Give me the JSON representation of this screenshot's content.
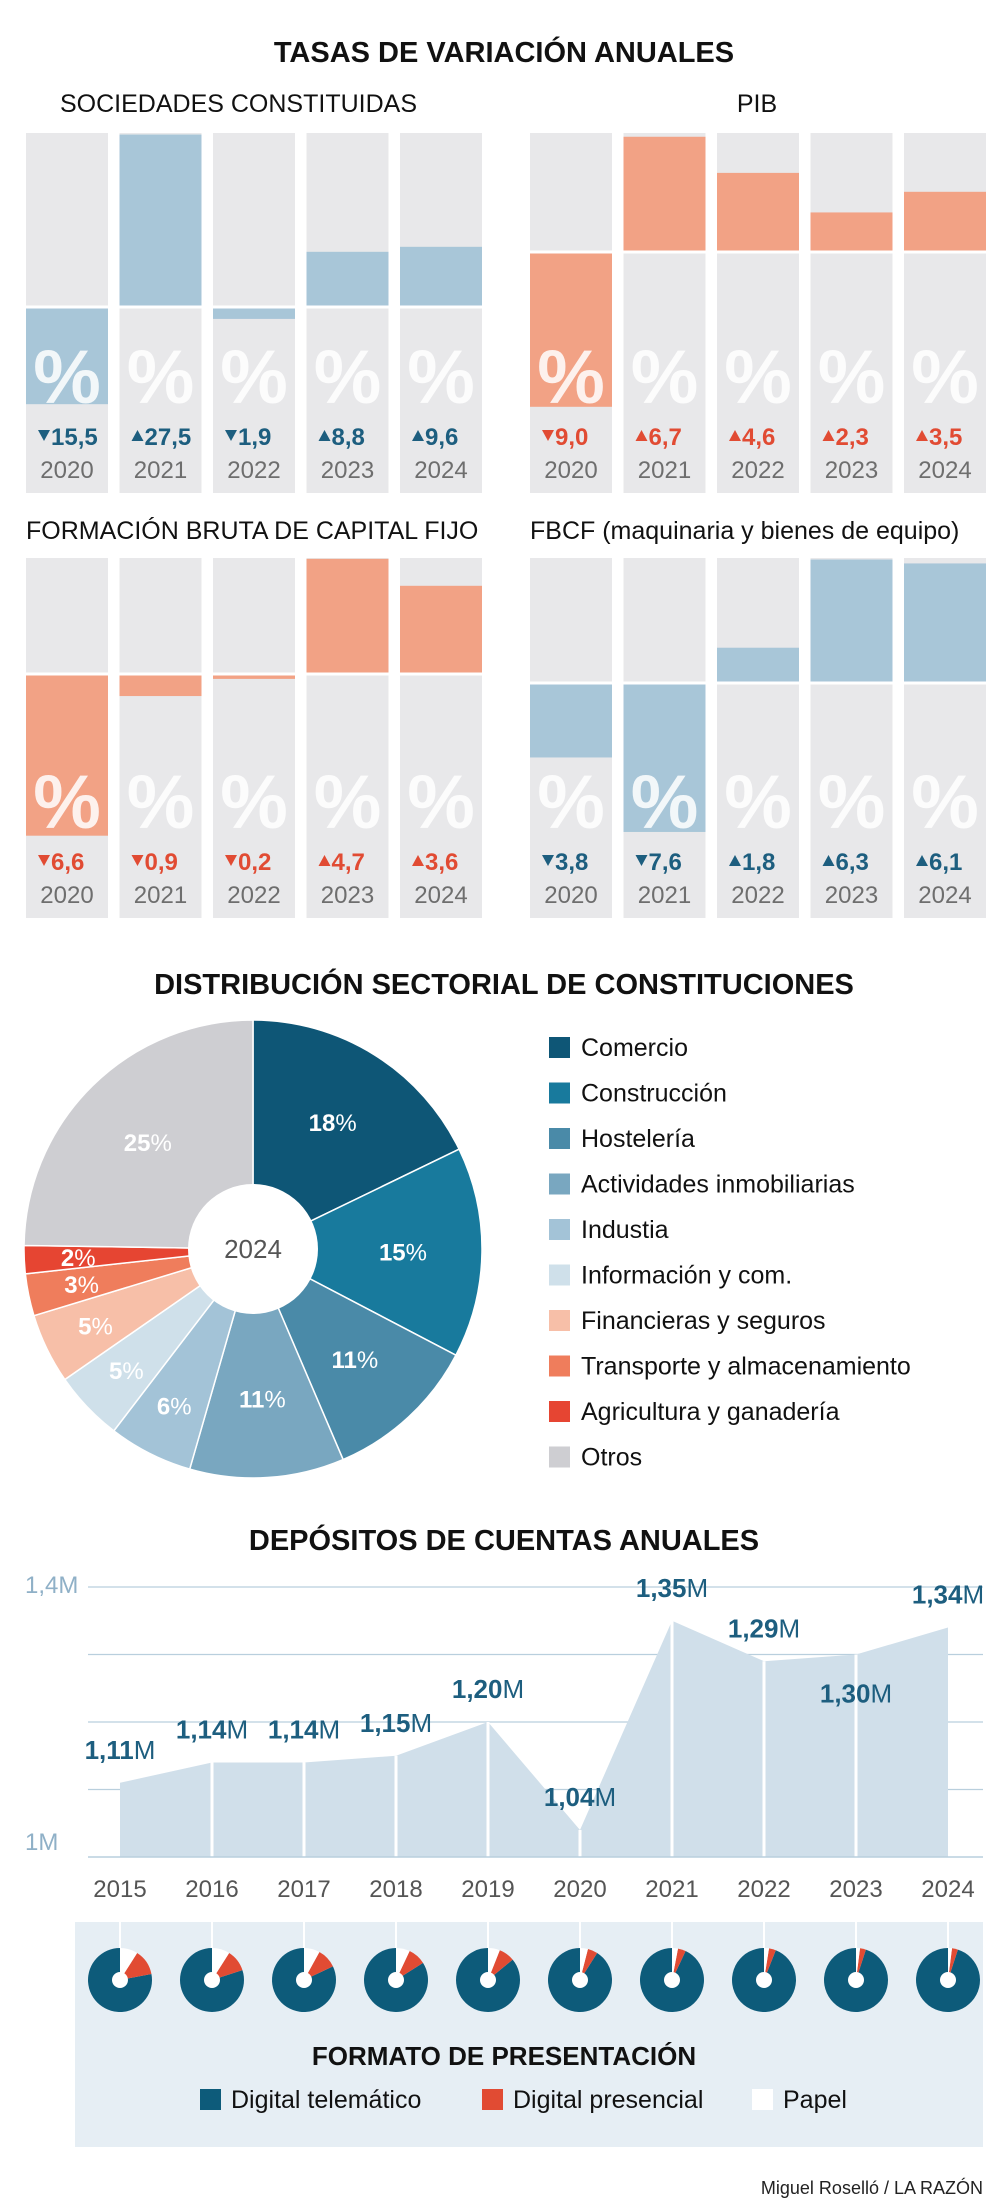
{
  "main_title": "TASAS DE VARIACIÓN ANUALES",
  "colors": {
    "blue_fill": "#a8c6d8",
    "red_fill": "#f2a285",
    "panel_gray": "#e8e8ea",
    "blue_text": "#1d5e7f",
    "red_text": "#e14b33",
    "year_gray": "#6e6e6e",
    "dark_teal": "#0d5b7a",
    "area_fill": "#d0dfea"
  },
  "rate_charts": [
    {
      "title": "SOCIEDADES CONSTITUIDAS",
      "color": "blue",
      "years": [
        "2020",
        "2021",
        "2022",
        "2023",
        "2024"
      ],
      "values": [
        -15.5,
        27.5,
        -1.9,
        8.8,
        9.6
      ],
      "labels": [
        "15,5",
        "27,5",
        "1,9",
        "8,8",
        "9,6"
      ]
    },
    {
      "title": "PIB",
      "color": "red",
      "years": [
        "2020",
        "2021",
        "2022",
        "2023",
        "2024"
      ],
      "values": [
        -9.0,
        6.7,
        4.6,
        2.3,
        3.5
      ],
      "labels": [
        "9,0",
        "6,7",
        "4,6",
        "2,3",
        "3,5"
      ]
    },
    {
      "title": "FORMACIÓN BRUTA DE CAPITAL FIJO",
      "color": "red",
      "years": [
        "2020",
        "2021",
        "2022",
        "2023",
        "2024"
      ],
      "values": [
        -6.6,
        -0.9,
        -0.2,
        4.7,
        3.6
      ],
      "labels": [
        "6,6",
        "0,9",
        "0,2",
        "4,7",
        "3,6"
      ]
    },
    {
      "title": "FBCF (maquinaria y bienes de equipo)",
      "color": "blue",
      "years": [
        "2020",
        "2021",
        "2022",
        "2023",
        "2024"
      ],
      "values": [
        -3.8,
        -7.6,
        1.8,
        6.3,
        6.1
      ],
      "labels": [
        "3,8",
        "7,6",
        "1,8",
        "6,3",
        "6,1"
      ]
    }
  ],
  "pct_symbol": "%",
  "pie": {
    "title": "DISTRIBUCIÓN SECTORIAL DE CONSTITUCIONES",
    "center_label": "2024",
    "slices": [
      {
        "name": "Comercio",
        "value": 18,
        "label": "18",
        "color": "#0e5676"
      },
      {
        "name": "Construcción",
        "value": 15,
        "label": "15",
        "color": "#187a9d"
      },
      {
        "name": "Hostelería",
        "value": 11,
        "label": "11",
        "color": "#4a8aa8"
      },
      {
        "name": "Actividades inmobiliarias",
        "value": 11,
        "label": "11",
        "color": "#79a7c0"
      },
      {
        "name": "Industia",
        "value": 6,
        "label": "6",
        "color": "#a3c3d7"
      },
      {
        "name": "Información y com.",
        "value": 5,
        "label": "5",
        "color": "#cfe0ea"
      },
      {
        "name": "Financieras y seguros",
        "value": 5,
        "label": "5",
        "color": "#f7bfa8"
      },
      {
        "name": "Transporte y almacenamiento",
        "value": 3,
        "label": "3",
        "color": "#ef7d5c"
      },
      {
        "name": "Agricultura y ganadería",
        "value": 2,
        "label": "2",
        "color": "#e64532"
      },
      {
        "name": "Otros",
        "value": 25,
        "label": "25",
        "color": "#ceced2"
      }
    ]
  },
  "deposits": {
    "title": "DEPÓSITOS DE CUENTAS ANUALES",
    "y_max_label": "1,4M",
    "y_min_label": "1M",
    "ylim": [
      1.0,
      1.4
    ],
    "years": [
      "2015",
      "2016",
      "2017",
      "2018",
      "2019",
      "2020",
      "2021",
      "2022",
      "2023",
      "2024"
    ],
    "values": [
      1.11,
      1.14,
      1.14,
      1.15,
      1.2,
      1.04,
      1.35,
      1.29,
      1.3,
      1.34
    ],
    "labels": [
      "1,11",
      "1,14",
      "1,14",
      "1,15",
      "1,20",
      "1,04",
      "1,35",
      "1,29",
      "1,30",
      "1,34"
    ],
    "unit": "M"
  },
  "format": {
    "title": "FORMATO DE PRESENTACIÓN",
    "legend": [
      {
        "name": "Digital telemático",
        "color": "#0d5b7a"
      },
      {
        "name": "Digital presencial",
        "color": "#e14b33"
      },
      {
        "name": "Papel",
        "color": "#ffffff"
      }
    ],
    "shares": [
      {
        "year": "2015",
        "telematico": 0.78,
        "presencial": 0.13,
        "papel": 0.09
      },
      {
        "year": "2016",
        "telematico": 0.8,
        "presencial": 0.11,
        "papel": 0.09
      },
      {
        "year": "2017",
        "telematico": 0.82,
        "presencial": 0.1,
        "papel": 0.08
      },
      {
        "year": "2018",
        "telematico": 0.84,
        "presencial": 0.09,
        "papel": 0.07
      },
      {
        "year": "2019",
        "telematico": 0.86,
        "presencial": 0.08,
        "papel": 0.06
      },
      {
        "year": "2020",
        "telematico": 0.91,
        "presencial": 0.05,
        "papel": 0.04
      },
      {
        "year": "2021",
        "telematico": 0.93,
        "presencial": 0.04,
        "papel": 0.03
      },
      {
        "year": "2022",
        "telematico": 0.94,
        "presencial": 0.035,
        "papel": 0.025
      },
      {
        "year": "2023",
        "telematico": 0.95,
        "presencial": 0.03,
        "papel": 0.02
      },
      {
        "year": "2024",
        "telematico": 0.95,
        "presencial": 0.03,
        "papel": 0.02
      }
    ]
  },
  "credit": "Miguel Roselló / LA RAZÓN",
  "chart_data": [
    {
      "type": "bar",
      "title": "SOCIEDADES CONSTITUIDAS",
      "categories": [
        "2020",
        "2021",
        "2022",
        "2023",
        "2024"
      ],
      "values": [
        -15.5,
        27.5,
        -1.9,
        8.8,
        9.6
      ]
    },
    {
      "type": "bar",
      "title": "PIB",
      "categories": [
        "2020",
        "2021",
        "2022",
        "2023",
        "2024"
      ],
      "values": [
        -9.0,
        6.7,
        4.6,
        2.3,
        3.5
      ]
    },
    {
      "type": "bar",
      "title": "FORMACIÓN BRUTA DE CAPITAL FIJO",
      "categories": [
        "2020",
        "2021",
        "2022",
        "2023",
        "2024"
      ],
      "values": [
        -6.6,
        -0.9,
        -0.2,
        4.7,
        3.6
      ]
    },
    {
      "type": "bar",
      "title": "FBCF (maquinaria y bienes de equipo)",
      "categories": [
        "2020",
        "2021",
        "2022",
        "2023",
        "2024"
      ],
      "values": [
        -3.8,
        -7.6,
        1.8,
        6.3,
        6.1
      ]
    },
    {
      "type": "pie",
      "title": "DISTRIBUCIÓN SECTORIAL DE CONSTITUCIONES",
      "categories": [
        "Comercio",
        "Construcción",
        "Hostelería",
        "Actividades inmobiliarias",
        "Industia",
        "Información y com.",
        "Financieras y seguros",
        "Transporte y almacenamiento",
        "Agricultura y ganadería",
        "Otros"
      ],
      "values": [
        18,
        15,
        11,
        11,
        6,
        5,
        5,
        3,
        2,
        25
      ],
      "legend": "right"
    },
    {
      "type": "area",
      "title": "DEPÓSITOS DE CUENTAS ANUALES",
      "x": [
        "2015",
        "2016",
        "2017",
        "2018",
        "2019",
        "2020",
        "2021",
        "2022",
        "2023",
        "2024"
      ],
      "values": [
        1.11,
        1.14,
        1.14,
        1.15,
        1.2,
        1.04,
        1.35,
        1.29,
        1.3,
        1.34
      ],
      "ylim": [
        1.0,
        1.4
      ],
      "grid": true
    },
    {
      "type": "pie",
      "title": "FORMATO DE PRESENTACIÓN",
      "categories": [
        "Digital telemático",
        "Digital presencial",
        "Papel"
      ],
      "x": [
        "2015",
        "2016",
        "2017",
        "2018",
        "2019",
        "2020",
        "2021",
        "2022",
        "2023",
        "2024"
      ],
      "series": [
        {
          "name": "Digital telemático",
          "values": [
            0.78,
            0.8,
            0.82,
            0.84,
            0.86,
            0.91,
            0.93,
            0.94,
            0.95,
            0.95
          ]
        },
        {
          "name": "Digital presencial",
          "values": [
            0.13,
            0.11,
            0.1,
            0.09,
            0.08,
            0.05,
            0.04,
            0.035,
            0.03,
            0.03
          ]
        },
        {
          "name": "Papel",
          "values": [
            0.09,
            0.09,
            0.08,
            0.07,
            0.06,
            0.04,
            0.03,
            0.025,
            0.02,
            0.02
          ]
        }
      ],
      "legend": "bottom"
    }
  ]
}
